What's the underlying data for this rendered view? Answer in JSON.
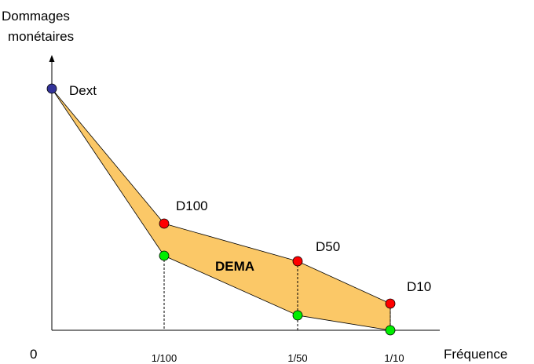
{
  "axes": {
    "y_label_line1": "Dommages",
    "y_label_line2": "monétaires",
    "x_label": "Fréquence",
    "origin_label": "0"
  },
  "ticks": {
    "t100": "1/100",
    "t50": "1/50",
    "t10": "1/10"
  },
  "points": {
    "dext": "Dext",
    "d100": "D100",
    "d50": "D50",
    "d10": "D10"
  },
  "area": {
    "label": "DEMA"
  },
  "colors": {
    "fill": "#fbc867",
    "red_point": "#ff0000",
    "green_point": "#00ee00",
    "blue_point": "#333399"
  }
}
